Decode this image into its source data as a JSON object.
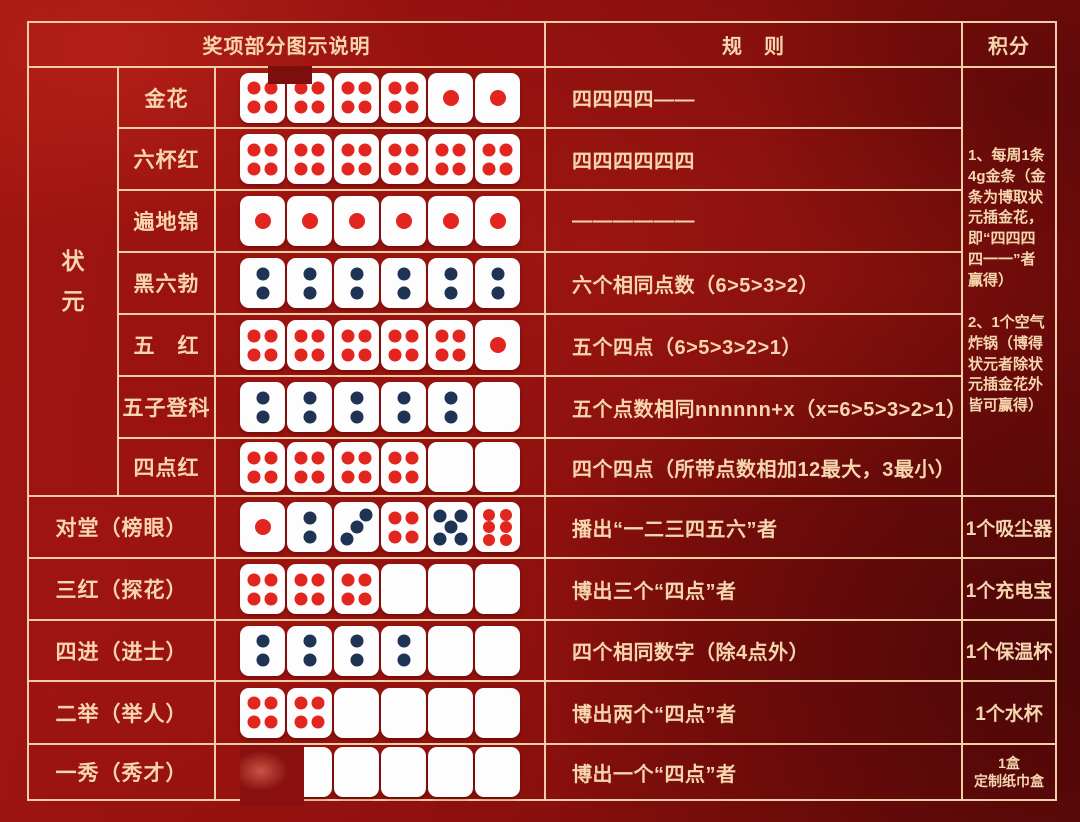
{
  "header": {
    "illustration": "奖项部分图示说明",
    "rules": "规　则",
    "score": "积分"
  },
  "section_label": "状元",
  "zhuangyuan_score": {
    "item1": "1、每周1条4g金条（金条为博取状元插金花，即“四四四四一一”者赢得）",
    "item2": "2、1个空气炸锅（博得状元者除状元插金花外皆可赢得）"
  },
  "dice_legend": {
    "format": "value+color per die: n=pips(0=blank, X=obscured by red patch), r=red pips, b=black pips",
    "red_pip_color": "#e2261f",
    "black_pip_color": "#1f3355"
  },
  "rows": [
    {
      "name": "金花",
      "dice": [
        "4r",
        "4r",
        "4r",
        "4r",
        "1r",
        "1r"
      ],
      "rule": "四四四四——"
    },
    {
      "name": "六杯红",
      "dice": [
        "4r",
        "4r",
        "4r",
        "4r",
        "4r",
        "4r"
      ],
      "rule": "四四四四四四"
    },
    {
      "name": "遍地锦",
      "dice": [
        "1r",
        "1r",
        "1r",
        "1r",
        "1r",
        "1r"
      ],
      "rule": "——————"
    },
    {
      "name": "黑六勃",
      "dice": [
        "2b",
        "2b",
        "2b",
        "2b",
        "2b",
        "2b"
      ],
      "rule": "六个相同点数（6>5>3>2）"
    },
    {
      "name": "五　红",
      "dice": [
        "4r",
        "4r",
        "4r",
        "4r",
        "4r",
        "1r"
      ],
      "rule": "五个四点（6>5>3>2>1）"
    },
    {
      "name": "五子登科",
      "dice": [
        "2b",
        "2b",
        "2b",
        "2b",
        "2b",
        "0"
      ],
      "rule": "五个点数相同nnnnnn+x（x=6>5>3>2>1）"
    },
    {
      "name": "四点红",
      "dice": [
        "4r",
        "4r",
        "4r",
        "4r",
        "0",
        "0"
      ],
      "rule": "四个四点（所带点数相加12最大，3最小）"
    },
    {
      "name": "对堂（榜眼）",
      "wide": true,
      "dice": [
        "1r",
        "2b",
        "3b",
        "4r",
        "5b",
        "6r"
      ],
      "rule": "播出“一二三四五六”者",
      "score": [
        "1个吸尘器"
      ]
    },
    {
      "name": "三红（探花）",
      "wide": true,
      "dice": [
        "4r",
        "4r",
        "4r",
        "0",
        "0",
        "0"
      ],
      "rule": "博出三个“四点”者",
      "score": [
        "1个充电宝"
      ]
    },
    {
      "name": "四进（进士）",
      "wide": true,
      "dice": [
        "2b",
        "2b",
        "2b",
        "2b",
        "0",
        "0"
      ],
      "rule": "四个相同数字（除4点外）",
      "score": [
        "1个保温杯"
      ]
    },
    {
      "name": "二举（举人）",
      "wide": true,
      "dice": [
        "4r",
        "4r",
        "0",
        "0",
        "0",
        "0"
      ],
      "rule": "博出两个“四点”者",
      "score": [
        "1个水杯"
      ]
    },
    {
      "name": "一秀（秀才）",
      "wide": true,
      "dice": [
        "X",
        "0",
        "0",
        "0",
        "0",
        "0"
      ],
      "rule": "博出一个“四点”者",
      "score": [
        "1盒",
        "定制纸巾盒"
      ]
    }
  ],
  "colors": {
    "background": "#8e100e",
    "grid_line": "#f2cda6",
    "text": "#f6d6ae",
    "die_face": "#fdfdfd"
  }
}
